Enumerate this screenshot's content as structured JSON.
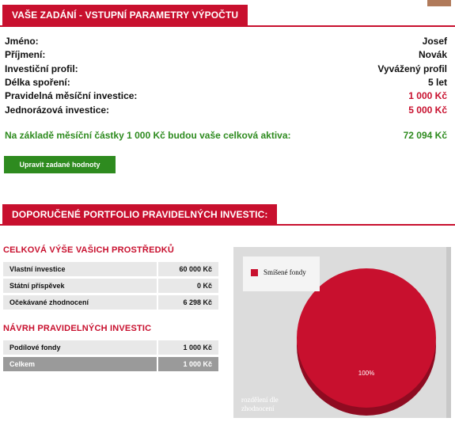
{
  "section1": {
    "title": "VAŠE ZADÁNÍ - VSTUPNÍ PARAMETRY VÝPOČTU",
    "fields": [
      {
        "label": "Jméno:",
        "value": "Josef"
      },
      {
        "label": "Příjmení:",
        "value": "Novák"
      },
      {
        "label": "Investiční profil:",
        "value": "Vyvážený profil"
      },
      {
        "label": "Délka spoření:",
        "value": "5 let"
      },
      {
        "label": "Pravidelná měsíční investice:",
        "value": "1 000 Kč"
      },
      {
        "label": "Jednorázová investice:",
        "value": "5 000 Kč"
      }
    ],
    "summary_label": "Na základě měsíční částky 1 000 Kč budou vaše celková aktiva:",
    "summary_value": "72 094 Kč",
    "edit_button": "Upravit zadané hodnoty"
  },
  "section2": {
    "title": "DOPORUČENÉ PORTFOLIO PRAVIDELNÝCH INVESTIC:",
    "totals_title": "CELKOVÁ VÝŠE VAŠICH PROSTŘEDKŮ",
    "totals": [
      {
        "label": "Vlastní investice",
        "value": "60 000 Kč"
      },
      {
        "label": "Státní příspěvek",
        "value": "0 Kč"
      },
      {
        "label": "Očekávané zhodnocení",
        "value": "6 298 Kč"
      }
    ],
    "proposal_title": "NÁVRH PRAVIDELNÝCH INVESTIC",
    "proposal": [
      {
        "label": "Podílové fondy",
        "value": "1 000 Kč"
      }
    ],
    "proposal_total": {
      "label": "Celkem",
      "value": "1 000 Kč"
    }
  },
  "chart_data": {
    "type": "pie",
    "title": "",
    "categories": [
      "Smíšené fondy"
    ],
    "values": [
      100
    ],
    "data_labels": [
      "100%"
    ],
    "caption": "rozdělení dle zhodnocení",
    "legend_position": "top-left",
    "colors": [
      "#c8102e"
    ]
  },
  "colors": {
    "accent": "#c8102e",
    "positive": "#2e8b1f",
    "button": "#2e8b1f"
  }
}
